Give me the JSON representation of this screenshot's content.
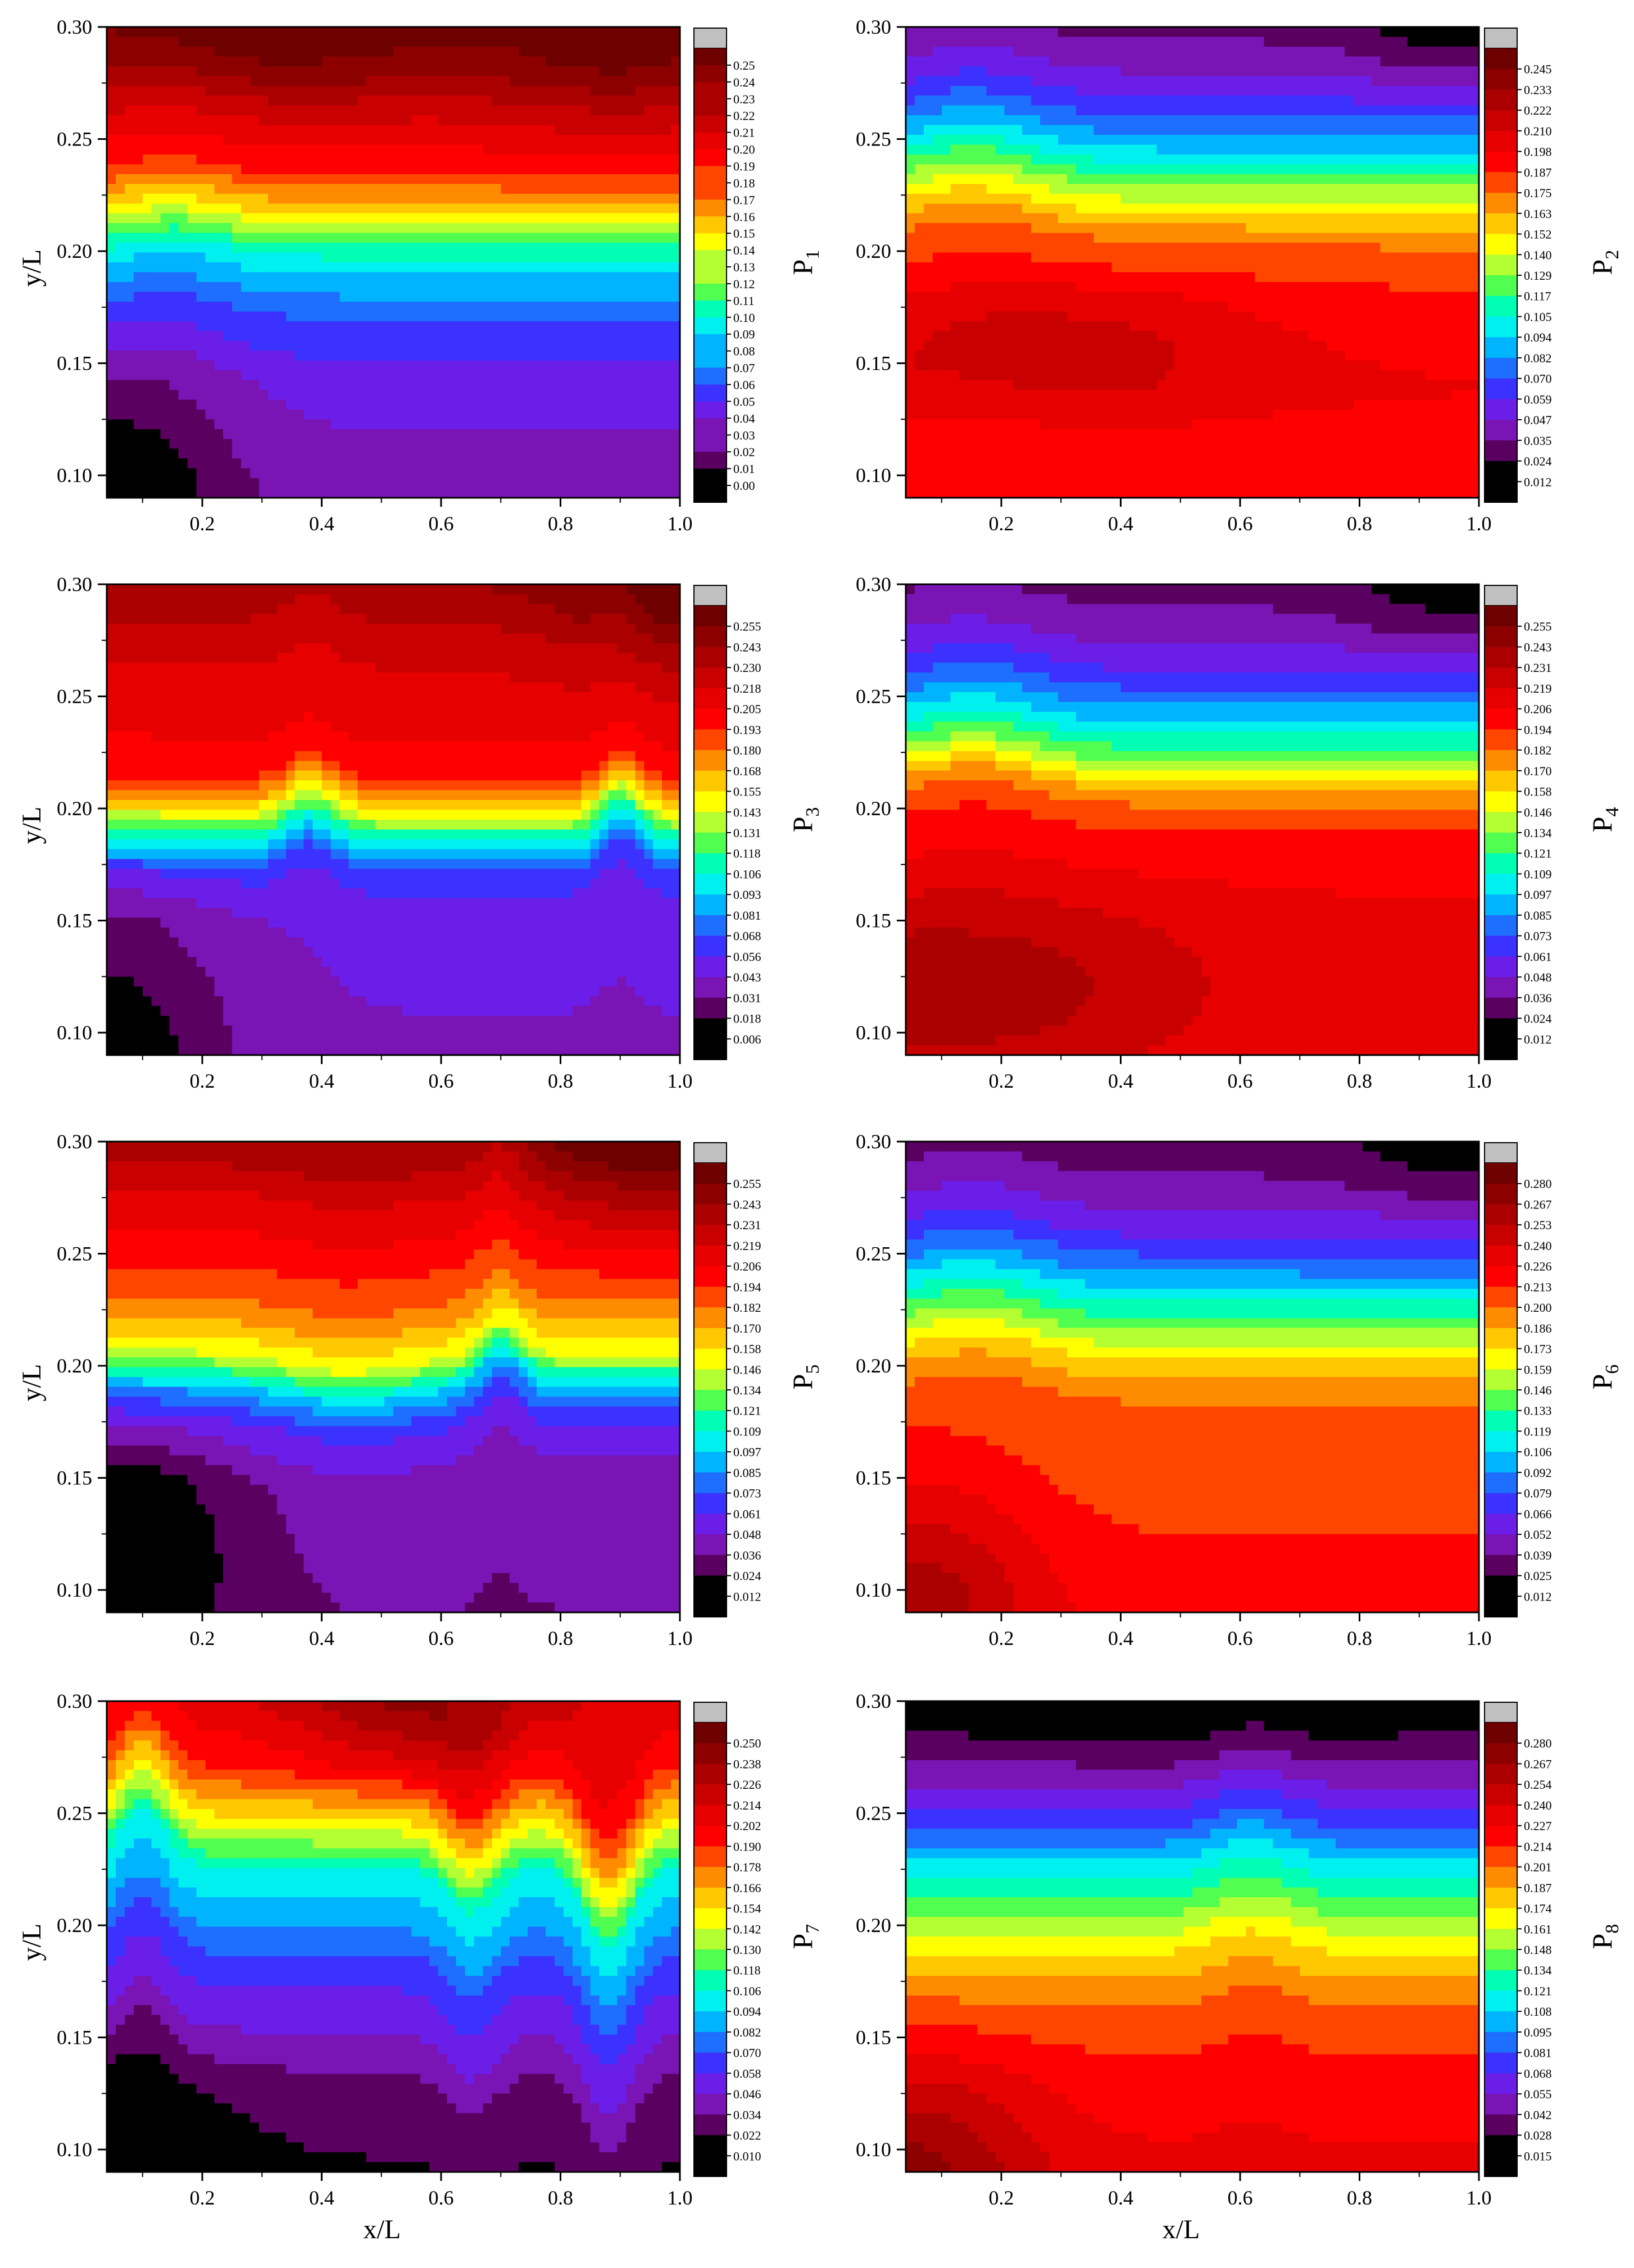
{
  "figure": {
    "xlabel": "x/L",
    "ylabel": "y/L"
  },
  "colormap": [
    "#000000",
    "#5a0060",
    "#7a14b4",
    "#6a1ee8",
    "#3c32ff",
    "#1e6eff",
    "#00b4ff",
    "#00f0f0",
    "#00ffb4",
    "#50ff50",
    "#b4ff32",
    "#ffff00",
    "#ffc800",
    "#ff8c00",
    "#ff4600",
    "#ff0000",
    "#e60000",
    "#c80000",
    "#aa0000",
    "#8c0000",
    "#6e0000",
    "#c0c0c0"
  ],
  "chart_data": [
    {
      "type": "heatmap",
      "panel_label": "P",
      "panel_index": "1",
      "xlim": [
        0.04,
        1.0
      ],
      "ylim": [
        0.09,
        0.3
      ],
      "xticks": [
        "0.2",
        "0.4",
        "0.6",
        "0.8",
        "1.0"
      ],
      "yticks": [
        "0.10",
        "0.15",
        "0.20",
        "0.25",
        "0.30"
      ],
      "colorbar_levels": [
        "0.25",
        "0.24",
        "0.23",
        "0.22",
        "0.21",
        "0.20",
        "0.19",
        "0.18",
        "0.17",
        "0.16",
        "0.15",
        "0.14",
        "0.13",
        "0.12",
        "0.11",
        "0.10",
        "0.09",
        "0.08",
        "0.07",
        "0.06",
        "0.05",
        "0.04",
        "0.03",
        "0.02",
        "0.01",
        "0.00"
      ],
      "profile": {
        "base": [
          [
            0.09,
            0.03
          ],
          [
            0.14,
            0.04
          ],
          [
            0.17,
            0.06
          ],
          [
            0.195,
            0.09
          ],
          [
            0.215,
            0.14
          ],
          [
            0.235,
            0.18
          ],
          [
            0.26,
            0.2
          ],
          [
            0.28,
            0.22
          ],
          [
            0.3,
            0.23
          ]
        ],
        "bumps": [
          [
            0.15,
            0.2,
            0.008
          ]
        ],
        "corners": [
          [
            0.05,
            0.09,
            0.2,
            0.07,
            -0.03
          ],
          [
            0.32,
            0.3,
            0.35,
            0.035,
            0.02
          ],
          [
            0.9,
            0.3,
            0.2,
            0.05,
            0.02
          ]
        ]
      }
    },
    {
      "type": "heatmap",
      "panel_label": "P",
      "panel_index": "2",
      "xlim": [
        0.04,
        1.0
      ],
      "ylim": [
        0.09,
        0.3
      ],
      "xticks": [
        "0.2",
        "0.4",
        "0.6",
        "0.8",
        "1.0"
      ],
      "yticks": [
        "0.10",
        "0.15",
        "0.20",
        "0.25",
        "0.30"
      ],
      "colorbar_levels": [
        "0.245",
        "0.233",
        "0.222",
        "0.210",
        "0.198",
        "0.187",
        "0.175",
        "0.163",
        "0.152",
        "0.140",
        "0.129",
        "0.117",
        "0.105",
        "0.094",
        "0.082",
        "0.070",
        "0.059",
        "0.047",
        "0.035",
        "0.024",
        "0.012"
      ],
      "profile": {
        "base": [
          [
            0.09,
            0.18
          ],
          [
            0.14,
            0.19
          ],
          [
            0.18,
            0.18
          ],
          [
            0.205,
            0.165
          ],
          [
            0.225,
            0.13
          ],
          [
            0.245,
            0.09
          ],
          [
            0.265,
            0.06
          ],
          [
            0.285,
            0.04
          ],
          [
            0.3,
            0.03
          ]
        ],
        "bumps": [
          [
            0.15,
            0.25,
            0.012
          ]
        ],
        "corners": [
          [
            0.3,
            0.16,
            0.35,
            0.03,
            0.02
          ],
          [
            0.95,
            0.3,
            0.15,
            0.03,
            -0.015
          ]
        ]
      }
    },
    {
      "type": "heatmap",
      "panel_label": "P",
      "panel_index": "3",
      "xlim": [
        0.04,
        1.0
      ],
      "ylim": [
        0.09,
        0.3
      ],
      "xticks": [
        "0.2",
        "0.4",
        "0.6",
        "0.8",
        "1.0"
      ],
      "yticks": [
        "0.10",
        "0.15",
        "0.20",
        "0.25",
        "0.30"
      ],
      "colorbar_levels": [
        "0.255",
        "0.243",
        "0.230",
        "0.218",
        "0.205",
        "0.193",
        "0.180",
        "0.168",
        "0.155",
        "0.143",
        "0.131",
        "0.118",
        "0.106",
        "0.093",
        "0.081",
        "0.068",
        "0.056",
        "0.043",
        "0.031",
        "0.018",
        "0.006"
      ],
      "profile": {
        "base": [
          [
            0.09,
            0.04
          ],
          [
            0.15,
            0.045
          ],
          [
            0.17,
            0.06
          ],
          [
            0.185,
            0.1
          ],
          [
            0.2,
            0.15
          ],
          [
            0.215,
            0.19
          ],
          [
            0.24,
            0.2
          ],
          [
            0.27,
            0.21
          ],
          [
            0.3,
            0.23
          ]
        ],
        "bumps": [
          [
            0.38,
            0.1,
            0.012
          ],
          [
            0.9,
            0.08,
            0.015
          ]
        ],
        "corners": [
          [
            0.05,
            0.09,
            0.2,
            0.08,
            -0.03
          ],
          [
            1.0,
            0.3,
            0.2,
            0.04,
            0.03
          ]
        ]
      }
    },
    {
      "type": "heatmap",
      "panel_label": "P",
      "panel_index": "4",
      "xlim": [
        0.04,
        1.0
      ],
      "ylim": [
        0.09,
        0.3
      ],
      "xticks": [
        "0.2",
        "0.4",
        "0.6",
        "0.8",
        "1.0"
      ],
      "yticks": [
        "0.10",
        "0.15",
        "0.20",
        "0.25",
        "0.30"
      ],
      "colorbar_levels": [
        "0.255",
        "0.243",
        "0.231",
        "0.219",
        "0.206",
        "0.194",
        "0.182",
        "0.170",
        "0.158",
        "0.146",
        "0.134",
        "0.121",
        "0.109",
        "0.097",
        "0.085",
        "0.073",
        "0.061",
        "0.048",
        "0.036",
        "0.024",
        "0.012"
      ],
      "profile": {
        "base": [
          [
            0.09,
            0.2
          ],
          [
            0.15,
            0.2
          ],
          [
            0.185,
            0.19
          ],
          [
            0.205,
            0.17
          ],
          [
            0.22,
            0.13
          ],
          [
            0.24,
            0.09
          ],
          [
            0.26,
            0.06
          ],
          [
            0.28,
            0.04
          ],
          [
            0.3,
            0.03
          ]
        ],
        "bumps": [
          [
            0.15,
            0.25,
            0.012
          ]
        ],
        "corners": [
          [
            0.1,
            0.12,
            0.4,
            0.04,
            0.03
          ],
          [
            0.95,
            0.3,
            0.15,
            0.03,
            -0.015
          ]
        ]
      }
    },
    {
      "type": "heatmap",
      "panel_label": "P",
      "panel_index": "5",
      "xlim": [
        0.04,
        1.0
      ],
      "ylim": [
        0.09,
        0.3
      ],
      "xticks": [
        "0.2",
        "0.4",
        "0.6",
        "0.8",
        "1.0"
      ],
      "yticks": [
        "0.10",
        "0.15",
        "0.20",
        "0.25",
        "0.30"
      ],
      "colorbar_levels": [
        "0.255",
        "0.243",
        "0.231",
        "0.219",
        "0.206",
        "0.194",
        "0.182",
        "0.170",
        "0.158",
        "0.146",
        "0.134",
        "0.121",
        "0.109",
        "0.097",
        "0.085",
        "0.073",
        "0.061",
        "0.048",
        "0.036",
        "0.024",
        "0.012"
      ],
      "profile": {
        "base": [
          [
            0.09,
            0.035
          ],
          [
            0.15,
            0.04
          ],
          [
            0.175,
            0.06
          ],
          [
            0.19,
            0.09
          ],
          [
            0.205,
            0.14
          ],
          [
            0.225,
            0.17
          ],
          [
            0.25,
            0.19
          ],
          [
            0.28,
            0.21
          ],
          [
            0.3,
            0.23
          ]
        ],
        "bumps": [
          [
            0.45,
            0.25,
            -0.008
          ],
          [
            0.7,
            0.08,
            0.015
          ]
        ],
        "corners": [
          [
            0.05,
            0.12,
            0.2,
            0.06,
            -0.03
          ],
          [
            0.95,
            0.3,
            0.2,
            0.04,
            0.03
          ]
        ]
      }
    },
    {
      "type": "heatmap",
      "panel_label": "P",
      "panel_index": "6",
      "xlim": [
        0.04,
        1.0
      ],
      "ylim": [
        0.09,
        0.3
      ],
      "xticks": [
        "0.2",
        "0.4",
        "0.6",
        "0.8",
        "1.0"
      ],
      "yticks": [
        "0.10",
        "0.15",
        "0.20",
        "0.25",
        "0.30"
      ],
      "colorbar_levels": [
        "0.280",
        "0.267",
        "0.253",
        "0.240",
        "0.226",
        "0.213",
        "0.200",
        "0.186",
        "0.173",
        "0.159",
        "0.146",
        "0.133",
        "0.119",
        "0.106",
        "0.092",
        "0.079",
        "0.066",
        "0.052",
        "0.039",
        "0.025",
        "0.012"
      ],
      "profile": {
        "base": [
          [
            0.09,
            0.21
          ],
          [
            0.14,
            0.2
          ],
          [
            0.18,
            0.195
          ],
          [
            0.2,
            0.17
          ],
          [
            0.22,
            0.13
          ],
          [
            0.24,
            0.09
          ],
          [
            0.26,
            0.06
          ],
          [
            0.28,
            0.04
          ],
          [
            0.3,
            0.03
          ]
        ],
        "bumps": [
          [
            0.15,
            0.25,
            0.012
          ]
        ],
        "corners": [
          [
            0.05,
            0.09,
            0.2,
            0.06,
            0.04
          ],
          [
            0.95,
            0.3,
            0.15,
            0.03,
            -0.015
          ]
        ]
      }
    },
    {
      "type": "heatmap",
      "panel_label": "P",
      "panel_index": "7",
      "xlim": [
        0.04,
        1.0
      ],
      "ylim": [
        0.09,
        0.3
      ],
      "xticks": [
        "0.2",
        "0.4",
        "0.6",
        "0.8",
        "1.0"
      ],
      "yticks": [
        "0.10",
        "0.15",
        "0.20",
        "0.25",
        "0.30"
      ],
      "colorbar_levels": [
        "0.250",
        "0.238",
        "0.226",
        "0.214",
        "0.202",
        "0.190",
        "0.178",
        "0.166",
        "0.154",
        "0.142",
        "0.130",
        "0.118",
        "0.106",
        "0.094",
        "0.082",
        "0.070",
        "0.058",
        "0.046",
        "0.034",
        "0.022",
        "0.010"
      ],
      "profile": {
        "base": [
          [
            0.09,
            0.02
          ],
          [
            0.13,
            0.03
          ],
          [
            0.16,
            0.05
          ],
          [
            0.18,
            0.06
          ],
          [
            0.2,
            0.08
          ],
          [
            0.225,
            0.1
          ],
          [
            0.245,
            0.14
          ],
          [
            0.27,
            0.18
          ],
          [
            0.3,
            0.2
          ]
        ],
        "bumps": [
          [
            0.1,
            0.1,
            0.025
          ],
          [
            0.88,
            0.1,
            -0.035
          ],
          [
            0.65,
            0.1,
            -0.02
          ]
        ],
        "corners": [
          [
            0.05,
            0.09,
            0.2,
            0.05,
            -0.02
          ],
          [
            0.55,
            0.3,
            0.2,
            0.04,
            0.03
          ]
        ]
      }
    },
    {
      "type": "heatmap",
      "panel_label": "P",
      "panel_index": "8",
      "xlim": [
        0.04,
        1.0
      ],
      "ylim": [
        0.09,
        0.3
      ],
      "xticks": [
        "0.2",
        "0.4",
        "0.6",
        "0.8",
        "1.0"
      ],
      "yticks": [
        "0.10",
        "0.15",
        "0.20",
        "0.25",
        "0.30"
      ],
      "colorbar_levels": [
        "0.280",
        "0.267",
        "0.254",
        "0.240",
        "0.227",
        "0.214",
        "0.201",
        "0.187",
        "0.174",
        "0.161",
        "0.148",
        "0.134",
        "0.121",
        "0.108",
        "0.095",
        "0.081",
        "0.068",
        "0.055",
        "0.042",
        "0.028",
        "0.015"
      ],
      "profile": {
        "base": [
          [
            0.09,
            0.22
          ],
          [
            0.13,
            0.21
          ],
          [
            0.16,
            0.195
          ],
          [
            0.185,
            0.17
          ],
          [
            0.205,
            0.14
          ],
          [
            0.225,
            0.11
          ],
          [
            0.245,
            0.075
          ],
          [
            0.265,
            0.05
          ],
          [
            0.285,
            0.03
          ],
          [
            0.3,
            0.025
          ]
        ],
        "bumps": [
          [
            0.62,
            0.15,
            0.01
          ]
        ],
        "corners": [
          [
            0.05,
            0.09,
            0.2,
            0.05,
            0.04
          ],
          [
            0.5,
            0.3,
            0.35,
            0.03,
            -0.01
          ]
        ]
      }
    }
  ]
}
